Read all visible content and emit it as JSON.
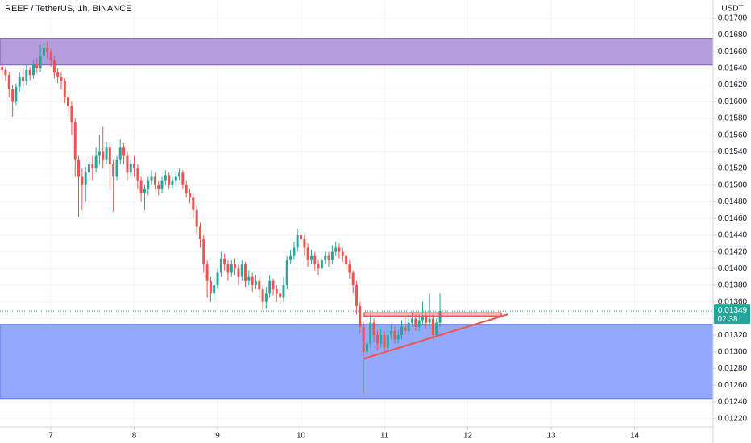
{
  "chart_data": {
    "type": "candlestick",
    "title": "REEF / TetherUS, 1h, BINANCE",
    "currency": "USDT",
    "up_color": "#26a69a",
    "down_color": "#ef5350",
    "grid": true,
    "x": [
      6.417,
      6.458,
      6.5,
      6.542,
      6.583,
      6.625,
      6.667,
      6.708,
      6.75,
      6.792,
      6.833,
      6.875,
      6.917,
      6.958,
      7,
      7.042,
      7.083,
      7.125,
      7.167,
      7.208,
      7.25,
      7.292,
      7.333,
      7.375,
      7.417,
      7.458,
      7.5,
      7.542,
      7.583,
      7.625,
      7.667,
      7.708,
      7.75,
      7.792,
      7.833,
      7.875,
      7.917,
      7.958,
      8,
      8.042,
      8.083,
      8.125,
      8.167,
      8.208,
      8.25,
      8.292,
      8.333,
      8.375,
      8.417,
      8.458,
      8.5,
      8.542,
      8.583,
      8.625,
      8.667,
      8.708,
      8.75,
      8.792,
      8.833,
      8.875,
      8.917,
      8.958,
      9,
      9.042,
      9.083,
      9.125,
      9.167,
      9.208,
      9.25,
      9.292,
      9.333,
      9.375,
      9.417,
      9.458,
      9.5,
      9.542,
      9.583,
      9.625,
      9.667,
      9.708,
      9.75,
      9.792,
      9.833,
      9.875,
      9.917,
      9.958,
      10,
      10.042,
      10.083,
      10.125,
      10.167,
      10.208,
      10.25,
      10.292,
      10.333,
      10.375,
      10.417,
      10.458,
      10.5,
      10.542,
      10.583,
      10.625,
      10.667,
      10.708,
      10.75,
      10.792,
      10.833,
      10.875,
      10.917,
      10.958,
      11,
      11.042,
      11.083,
      11.125,
      11.167,
      11.208,
      11.25,
      11.292,
      11.333,
      11.375,
      11.417,
      11.458,
      11.5,
      11.542,
      11.583,
      11.625,
      11.667
    ],
    "open": [
      0.01642,
      0.01638,
      0.01632,
      0.01615,
      0.016,
      0.01618,
      0.0163,
      0.01625,
      0.01638,
      0.01632,
      0.01645,
      0.0164,
      0.01655,
      0.01665,
      0.0166,
      0.0165,
      0.01635,
      0.0163,
      0.01625,
      0.01605,
      0.01595,
      0.01575,
      0.0153,
      0.0151,
      0.015,
      0.01515,
      0.01525,
      0.0152,
      0.01535,
      0.0154,
      0.0153,
      0.01545,
      0.01525,
      0.0151,
      0.0153,
      0.01545,
      0.01535,
      0.01515,
      0.01525,
      0.0152,
      0.01505,
      0.0149,
      0.01495,
      0.01505,
      0.0151,
      0.015,
      0.01495,
      0.01505,
      0.01512,
      0.015,
      0.01505,
      0.0151,
      0.01515,
      0.015,
      0.0149,
      0.01485,
      0.0147,
      0.0145,
      0.01435,
      0.01405,
      0.01385,
      0.0137,
      0.0138,
      0.01395,
      0.01412,
      0.01405,
      0.01395,
      0.01405,
      0.014,
      0.0139,
      0.01405,
      0.01385,
      0.0139,
      0.0138,
      0.01385,
      0.01375,
      0.0136,
      0.0137,
      0.01385,
      0.01375,
      0.0137,
      0.01365,
      0.0138,
      0.0141,
      0.01415,
      0.01425,
      0.0144,
      0.01435,
      0.01425,
      0.0141,
      0.01415,
      0.01405,
      0.014,
      0.0141,
      0.01415,
      0.0141,
      0.0142,
      0.01425,
      0.0142,
      0.01415,
      0.01405,
      0.01395,
      0.0138,
      0.01355,
      0.0133,
      0.013,
      0.0131,
      0.01335,
      0.0132,
      0.0131,
      0.0132,
      0.01305,
      0.0132,
      0.01325,
      0.01315,
      0.0132,
      0.0133,
      0.01325,
      0.01335,
      0.0134,
      0.0133,
      0.01338,
      0.01342,
      0.01335,
      0.0134,
      0.0132,
      0.01335
    ],
    "high": [
      0.01648,
      0.01642,
      0.01635,
      0.0162,
      0.01622,
      0.01635,
      0.0164,
      0.01644,
      0.01642,
      0.0165,
      0.01652,
      0.01668,
      0.0167,
      0.01672,
      0.01664,
      0.01655,
      0.0164,
      0.01636,
      0.01628,
      0.0161,
      0.016,
      0.0158,
      0.01535,
      0.0152,
      0.01522,
      0.0153,
      0.01535,
      0.01545,
      0.0156,
      0.0157,
      0.01552,
      0.0155,
      0.0153,
      0.01535,
      0.01555,
      0.0155,
      0.0154,
      0.0153,
      0.01535,
      0.01525,
      0.0151,
      0.015,
      0.0151,
      0.01518,
      0.01515,
      0.01505,
      0.0151,
      0.01518,
      0.01515,
      0.0151,
      0.01516,
      0.0152,
      0.01518,
      0.01505,
      0.01495,
      0.0149,
      0.01475,
      0.01455,
      0.0144,
      0.0141,
      0.0139,
      0.01388,
      0.014,
      0.0142,
      0.01418,
      0.0141,
      0.0141,
      0.01412,
      0.01405,
      0.0141,
      0.01408,
      0.01398,
      0.01395,
      0.01392,
      0.0139,
      0.0138,
      0.01378,
      0.01392,
      0.01388,
      0.0138,
      0.01375,
      0.0139,
      0.01415,
      0.01422,
      0.01432,
      0.01448,
      0.01445,
      0.0144,
      0.0143,
      0.01422,
      0.0142,
      0.0141,
      0.01415,
      0.0142,
      0.0142,
      0.01428,
      0.01432,
      0.0143,
      0.01425,
      0.0142,
      0.0141,
      0.01398,
      0.01385,
      0.0136,
      0.01335,
      0.01315,
      0.01345,
      0.0134,
      0.01325,
      0.01328,
      0.01325,
      0.01326,
      0.01332,
      0.0133,
      0.01326,
      0.01338,
      0.01342,
      0.01345,
      0.01348,
      0.01345,
      0.01345,
      0.0136,
      0.01348,
      0.0137,
      0.01345,
      0.0134,
      0.0137
    ],
    "low": [
      0.01632,
      0.01625,
      0.01605,
      0.01582,
      0.01596,
      0.01612,
      0.01618,
      0.0162,
      0.01626,
      0.01628,
      0.01634,
      0.01636,
      0.0165,
      0.01652,
      0.01642,
      0.01628,
      0.01622,
      0.01615,
      0.01598,
      0.01585,
      0.0156,
      0.0151,
      0.01462,
      0.0147,
      0.0148,
      0.01505,
      0.01505,
      0.01515,
      0.01525,
      0.0152,
      0.01525,
      0.01495,
      0.01468,
      0.01505,
      0.01525,
      0.01525,
      0.01505,
      0.0151,
      0.0151,
      0.01495,
      0.0148,
      0.0147,
      0.01488,
      0.015,
      0.01495,
      0.01488,
      0.0149,
      0.015,
      0.01495,
      0.01496,
      0.015,
      0.01505,
      0.01495,
      0.01485,
      0.01478,
      0.0146,
      0.0144,
      0.01425,
      0.01395,
      0.01365,
      0.0136,
      0.01362,
      0.01375,
      0.0139,
      0.01398,
      0.01385,
      0.0139,
      0.01392,
      0.0138,
      0.01385,
      0.01378,
      0.0138,
      0.01372,
      0.01375,
      0.01365,
      0.0135,
      0.01352,
      0.01365,
      0.01368,
      0.0136,
      0.01358,
      0.0136,
      0.01375,
      0.01405,
      0.0141,
      0.0142,
      0.01425,
      0.01415,
      0.01402,
      0.01405,
      0.01398,
      0.01392,
      0.01395,
      0.01405,
      0.01402,
      0.01405,
      0.01415,
      0.01412,
      0.01408,
      0.01398,
      0.01388,
      0.0137,
      0.01345,
      0.01322,
      0.0125,
      0.0129,
      0.01305,
      0.01312,
      0.01302,
      0.01305,
      0.013,
      0.01302,
      0.01315,
      0.0131,
      0.0131,
      0.01315,
      0.0132,
      0.0132,
      0.0133,
      0.01325,
      0.01325,
      0.01332,
      0.01328,
      0.0133,
      0.01315,
      0.01318,
      0.0133
    ],
    "close": [
      0.01638,
      0.01632,
      0.01615,
      0.016,
      0.01618,
      0.0163,
      0.01625,
      0.01638,
      0.01632,
      0.01645,
      0.0164,
      0.01655,
      0.01665,
      0.0166,
      0.0165,
      0.01635,
      0.0163,
      0.01625,
      0.01605,
      0.01595,
      0.01575,
      0.0153,
      0.0151,
      0.015,
      0.01515,
      0.01525,
      0.0152,
      0.01535,
      0.0154,
      0.0153,
      0.01545,
      0.01525,
      0.0151,
      0.0153,
      0.01545,
      0.01535,
      0.01515,
      0.01525,
      0.0152,
      0.01505,
      0.0149,
      0.01495,
      0.01505,
      0.0151,
      0.015,
      0.01495,
      0.01505,
      0.01512,
      0.015,
      0.01505,
      0.0151,
      0.01515,
      0.015,
      0.0149,
      0.01485,
      0.0147,
      0.0145,
      0.01435,
      0.01405,
      0.01385,
      0.0137,
      0.0138,
      0.01395,
      0.01412,
      0.01405,
      0.01395,
      0.01405,
      0.014,
      0.0139,
      0.01405,
      0.01385,
      0.0139,
      0.0138,
      0.01385,
      0.01375,
      0.0136,
      0.0137,
      0.01385,
      0.01375,
      0.0137,
      0.01365,
      0.0138,
      0.0141,
      0.01415,
      0.01425,
      0.0144,
      0.01435,
      0.01425,
      0.0141,
      0.01415,
      0.01405,
      0.014,
      0.0141,
      0.01415,
      0.0141,
      0.0142,
      0.01425,
      0.0142,
      0.01415,
      0.01405,
      0.01395,
      0.0138,
      0.01355,
      0.0133,
      0.013,
      0.0131,
      0.01335,
      0.0132,
      0.0131,
      0.0132,
      0.01305,
      0.0132,
      0.01325,
      0.01315,
      0.0132,
      0.0133,
      0.01325,
      0.01335,
      0.0134,
      0.0133,
      0.01338,
      0.01342,
      0.01335,
      0.0134,
      0.0132,
      0.01335,
      0.01349
    ],
    "xlim": [
      6.391,
      14.942
    ],
    "xticks": [
      7,
      8,
      9,
      10,
      11,
      12,
      13,
      14
    ],
    "ylim": [
      0.0121,
      0.01722
    ],
    "yticks": [
      {
        "value": 0.0122,
        "label": "0.01220"
      },
      {
        "value": 0.0124,
        "label": "0.01240"
      },
      {
        "value": 0.0126,
        "label": "0.01260"
      },
      {
        "value": 0.0128,
        "label": "0.01280"
      },
      {
        "value": 0.013,
        "label": "0.01300"
      },
      {
        "value": 0.0132,
        "label": "0.01320"
      },
      {
        "value": 0.0134,
        "label": "0.01340"
      },
      {
        "value": 0.0136,
        "label": "0.01360"
      },
      {
        "value": 0.0138,
        "label": "0.01380"
      },
      {
        "value": 0.014,
        "label": "0.01400"
      },
      {
        "value": 0.0142,
        "label": "0.01420"
      },
      {
        "value": 0.0144,
        "label": "0.01440"
      },
      {
        "value": 0.0146,
        "label": "0.01460"
      },
      {
        "value": 0.0148,
        "label": "0.01480"
      },
      {
        "value": 0.015,
        "label": "0.01500"
      },
      {
        "value": 0.0152,
        "label": "0.01520"
      },
      {
        "value": 0.0154,
        "label": "0.01540"
      },
      {
        "value": 0.0156,
        "label": "0.01560"
      },
      {
        "value": 0.0158,
        "label": "0.01580"
      },
      {
        "value": 0.016,
        "label": "0.01600"
      },
      {
        "value": 0.0162,
        "label": "0.01620"
      },
      {
        "value": 0.0164,
        "label": "0.01640"
      },
      {
        "value": 0.0166,
        "label": "0.01660"
      },
      {
        "value": 0.0168,
        "label": "0.01680"
      },
      {
        "value": 0.017,
        "label": "0.01700"
      }
    ],
    "zones": [
      {
        "top": 0.01676,
        "bottom": 0.01644,
        "color": "#b39ddb",
        "border": "#7e57c2"
      },
      {
        "top": 0.01333,
        "bottom": 0.01244,
        "color": "#93a9fb",
        "border": "#5b7cf0"
      }
    ],
    "drawings": [
      {
        "kind": "rectangle",
        "x": [
          10.758,
          12.401
        ],
        "y": [
          0.01347,
          0.01343
        ],
        "color": "#ef5350"
      },
      {
        "kind": "line",
        "x": [
          10.758,
          12.478
        ],
        "y": [
          0.01292,
          0.01345
        ],
        "color": "#ef5350"
      }
    ],
    "last_price": {
      "value": 0.01349,
      "label": "0.01349"
    },
    "countdown": "02:38"
  }
}
